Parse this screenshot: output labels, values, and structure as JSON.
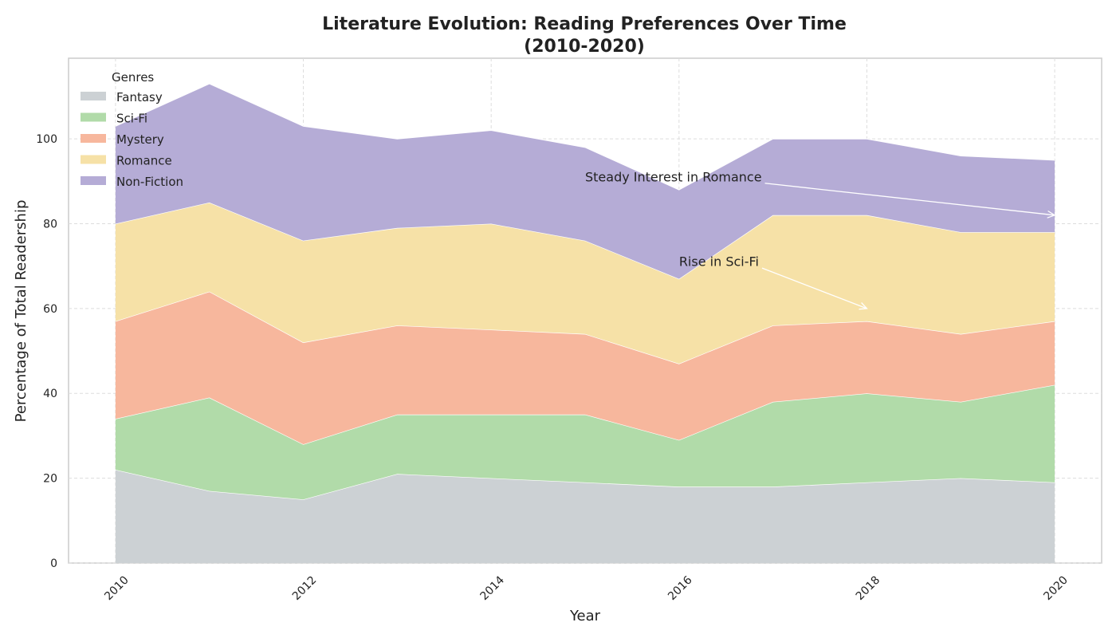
{
  "chart_data": {
    "type": "area",
    "stacked": true,
    "title_line1": "Literature Evolution: Reading Preferences Over Time",
    "title_line2": "(2010-2020)",
    "xlabel": "Year",
    "ylabel": "Percentage of Total Readership",
    "x": [
      2010,
      2011,
      2012,
      2013,
      2014,
      2015,
      2016,
      2017,
      2018,
      2019,
      2020
    ],
    "xlim": [
      2009.5,
      2020.5
    ],
    "ylim": [
      0,
      119
    ],
    "x_ticks": [
      2010,
      2012,
      2014,
      2016,
      2018,
      2020
    ],
    "y_ticks": [
      0,
      20,
      40,
      60,
      80,
      100
    ],
    "grid": true,
    "legend": {
      "title": "Genres",
      "placement": "upper-left"
    },
    "series": [
      {
        "name": "Fantasy",
        "color": "#ccd1d4",
        "values": [
          22,
          17,
          15,
          21,
          20,
          19,
          18,
          18,
          19,
          20,
          19
        ]
      },
      {
        "name": "Sci-Fi",
        "color": "#b1dba9",
        "values": [
          12,
          22,
          13,
          14,
          15,
          16,
          11,
          20,
          21,
          18,
          23
        ]
      },
      {
        "name": "Mystery",
        "color": "#f7b79d",
        "values": [
          23,
          25,
          24,
          21,
          20,
          19,
          18,
          18,
          17,
          16,
          15
        ]
      },
      {
        "name": "Romance",
        "color": "#f6e1a7",
        "values": [
          23,
          21,
          24,
          23,
          25,
          22,
          20,
          26,
          25,
          24,
          21
        ]
      },
      {
        "name": "Non-Fiction",
        "color": "#b5acd6",
        "values": [
          23,
          28,
          27,
          21,
          22,
          22,
          21,
          18,
          18,
          18,
          17
        ]
      }
    ],
    "annotations": [
      {
        "text": "Steady Interest in Romance",
        "text_at": [
          2015,
          90
        ],
        "arrow_to": [
          2020,
          82
        ]
      },
      {
        "text": "Rise in Sci-Fi",
        "text_at": [
          2016,
          70
        ],
        "arrow_to": [
          2018,
          60
        ]
      }
    ]
  }
}
